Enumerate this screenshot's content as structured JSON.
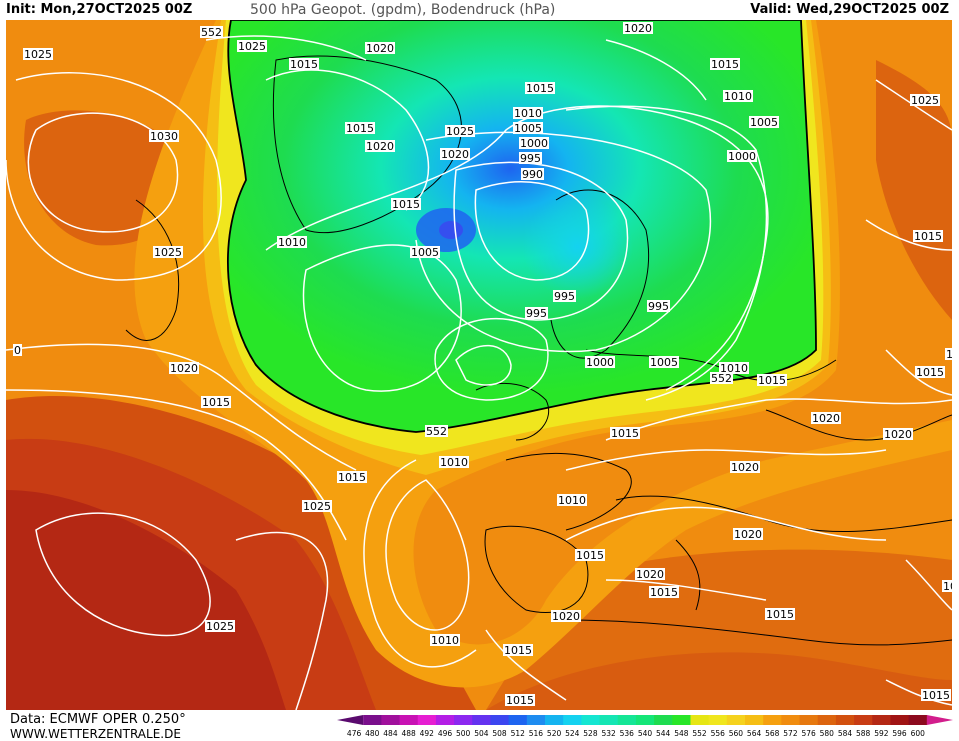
{
  "header": {
    "init": "Init: Mon,27OCT2025 00Z",
    "title": "500 hPa Geopot. (gpdm), Bodendruck (hPa)",
    "valid": "Valid: Wed,29OCT2025 00Z"
  },
  "footer": {
    "data_source": "Data: ECMWF OPER 0.250°",
    "website": "WWW.WETTERZENTRALE.DE"
  },
  "colorbar": {
    "ticks": [
      "476",
      "480",
      "484",
      "488",
      "492",
      "496",
      "500",
      "504",
      "508",
      "512",
      "516",
      "520",
      "524",
      "528",
      "532",
      "536",
      "540",
      "544",
      "548",
      "552",
      "556",
      "560",
      "564",
      "568",
      "572",
      "576",
      "580",
      "584",
      "588",
      "592",
      "596",
      "600"
    ],
    "colors": [
      "#5a0a6e",
      "#7a0f8c",
      "#a0109c",
      "#c812b4",
      "#e61ed2",
      "#b41ee6",
      "#8c28f0",
      "#6432f0",
      "#3c46f0",
      "#1e64f0",
      "#1e8cf0",
      "#14b4f0",
      "#14d2f0",
      "#14e6d2",
      "#14e6b4",
      "#14e696",
      "#14e678",
      "#1edc50",
      "#28e628",
      "#e6e614",
      "#f0e61e",
      "#f5d21e",
      "#f5be14",
      "#f5a00f",
      "#f08c0f",
      "#e6780f",
      "#dc640f",
      "#d2500f",
      "#c83c14",
      "#b42814",
      "#a01414",
      "#8c0a1e",
      "#d21e8c"
    ]
  },
  "contour_labels": [
    {
      "text": "552"
    },
    {
      "text": "552"
    },
    {
      "text": "552"
    },
    {
      "text": "1025"
    },
    {
      "text": "1030"
    },
    {
      "text": "1025"
    },
    {
      "text": "1025"
    },
    {
      "text": "1020"
    },
    {
      "text": "1020"
    },
    {
      "text": "1015"
    },
    {
      "text": "1015"
    },
    {
      "text": "1015"
    },
    {
      "text": "1020"
    },
    {
      "text": "1025"
    },
    {
      "text": "1020"
    },
    {
      "text": "1015"
    },
    {
      "text": "1010"
    },
    {
      "text": "1005"
    },
    {
      "text": "1015"
    },
    {
      "text": "1010"
    },
    {
      "text": "1005"
    },
    {
      "text": "1000"
    },
    {
      "text": "995"
    },
    {
      "text": "990"
    },
    {
      "text": "1020"
    },
    {
      "text": "1015"
    },
    {
      "text": "1010"
    },
    {
      "text": "1005"
    },
    {
      "text": "1000"
    },
    {
      "text": "1025"
    },
    {
      "text": "995"
    },
    {
      "text": "995"
    },
    {
      "text": "995"
    },
    {
      "text": "1000"
    },
    {
      "text": "1005"
    },
    {
      "text": "1010"
    },
    {
      "text": "1015"
    },
    {
      "text": "1015"
    },
    {
      "text": "1015"
    },
    {
      "text": "1015"
    },
    {
      "text": "1020"
    },
    {
      "text": "1020"
    },
    {
      "text": "1015"
    },
    {
      "text": "1010"
    },
    {
      "text": "1015"
    },
    {
      "text": "1020"
    },
    {
      "text": "1025"
    },
    {
      "text": "1010"
    },
    {
      "text": "1015"
    },
    {
      "text": "1020"
    },
    {
      "text": "1020"
    },
    {
      "text": "1020"
    },
    {
      "text": "1015"
    },
    {
      "text": "1020"
    },
    {
      "text": "1025"
    },
    {
      "text": "1010"
    },
    {
      "text": "1015"
    },
    {
      "text": "1015"
    },
    {
      "text": "1015"
    },
    {
      "text": "1015"
    },
    {
      "text": "1015"
    },
    {
      "text": "0"
    },
    {
      "text": "10"
    }
  ]
}
